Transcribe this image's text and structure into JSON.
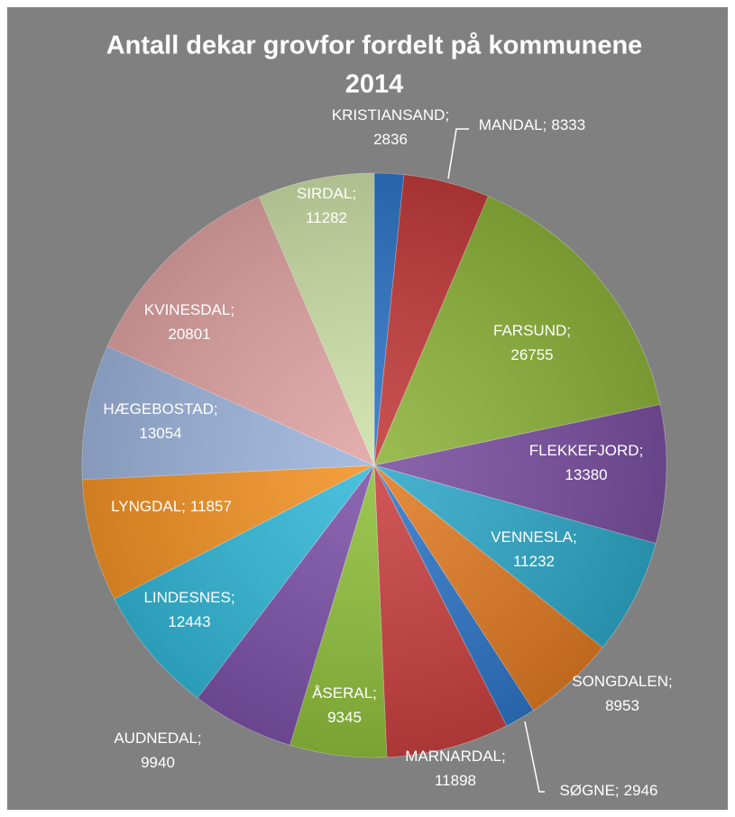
{
  "chart_data": {
    "type": "pie",
    "title": [
      "Antall dekar grovfor fordelt på kommunene",
      "2014"
    ],
    "label_separator": ";",
    "categories": [
      "KRISTIANSAND",
      "MANDAL",
      "FARSUND",
      "FLEKKEFJORD",
      "VENNESLA",
      "SONGDALEN",
      "SØGNE",
      "MARNARDAL",
      "ÅSERAL",
      "AUDNEDAL",
      "LINDESNES",
      "LYNGDAL",
      "HÆGEBOSTAD",
      "KVINESDAL",
      "SIRDAL"
    ],
    "values": [
      2836,
      8333,
      26755,
      13380,
      11232,
      8953,
      2946,
      11898,
      9345,
      9940,
      12443,
      11857,
      13054,
      20801,
      11282
    ],
    "colors": [
      "#2e75c6",
      "#c23b3b",
      "#8db33a",
      "#7a4fa0",
      "#2fa8c8",
      "#e07b24",
      "#2e75c6",
      "#c94040",
      "#8fbf3c",
      "#7d52a8",
      "#33b8d8",
      "#f39326",
      "#9db4dc",
      "#e0a3a3",
      "#cfe0a8"
    ]
  }
}
